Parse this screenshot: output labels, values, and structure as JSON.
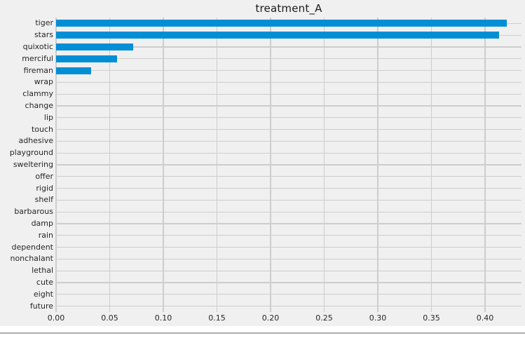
{
  "chart_data": {
    "type": "bar",
    "orientation": "horizontal",
    "title": "treatment_A",
    "xlabel": "",
    "ylabel": "",
    "categories": [
      "tiger",
      "stars",
      "quixotic",
      "merciful",
      "fireman",
      "wrap",
      "clammy",
      "change",
      "lip",
      "touch",
      "adhesive",
      "playground",
      "sweltering",
      "offer",
      "rigid",
      "shelf",
      "barbarous",
      "damp",
      "rain",
      "dependent",
      "nonchalant",
      "lethal",
      "cute",
      "eight",
      "future"
    ],
    "values": [
      0.42,
      0.413,
      0.072,
      0.057,
      0.033,
      0,
      0,
      0,
      0,
      0,
      0,
      0,
      0,
      0,
      0,
      0,
      0,
      0,
      0,
      0,
      0,
      0,
      0,
      0,
      0
    ],
    "x_tick_values": [
      0.0,
      0.05,
      0.1,
      0.15,
      0.2,
      0.25,
      0.3,
      0.35,
      0.4
    ],
    "x_tick_labels": [
      "0.00",
      "0.05",
      "0.10",
      "0.15",
      "0.20",
      "0.25",
      "0.30",
      "0.35",
      "0.40"
    ],
    "xlim": [
      0,
      0.434
    ],
    "grid": true,
    "legend": false
  },
  "style": {
    "figure_background": "#f0f0f0",
    "bar_color": "#008fd5",
    "gridline_color": "#cdcdcd",
    "text_color": "#262626",
    "title_color": "#1a1a1a",
    "footer_rule_color": "#adadad",
    "page_background": "#ffffff"
  }
}
